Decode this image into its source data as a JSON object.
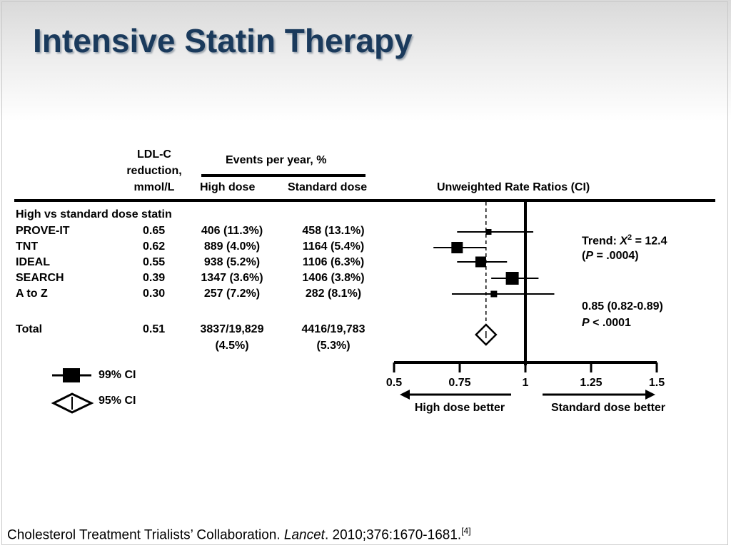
{
  "slide": {
    "title": "Intensive Statin Therapy"
  },
  "table": {
    "col_ldl": [
      "LDL-C",
      "reduction,",
      "mmol/L"
    ],
    "events_header": "Events per year, %",
    "col_high": "High dose",
    "col_standard": "Standard dose",
    "col_rr": "Unweighted Rate Ratios (CI)",
    "group_label": "High vs standard dose statin",
    "rows": [
      {
        "name": "PROVE-IT",
        "ldl": "0.65",
        "high": "406 (11.3%)",
        "standard": "458 (13.1%)"
      },
      {
        "name": "TNT",
        "ldl": "0.62",
        "high": "889 (4.0%)",
        "standard": "1164 (5.4%)"
      },
      {
        "name": "IDEAL",
        "ldl": "0.55",
        "high": "938 (5.2%)",
        "standard": "1106 (6.3%)"
      },
      {
        "name": "SEARCH",
        "ldl": "0.39",
        "high": "1347 (3.6%)",
        "standard": "1406 (3.8%)"
      },
      {
        "name": "A to Z",
        "ldl": "0.30",
        "high": "257 (7.2%)",
        "standard": "282 (8.1%)"
      }
    ],
    "total": {
      "name": "Total",
      "ldl": "0.51",
      "high": [
        "3837/19,829",
        "(4.5%)"
      ],
      "standard": [
        "4416/19,783",
        "(5.3%)"
      ]
    }
  },
  "legend": {
    "square_label": "99% CI",
    "diamond_label": "95% CI"
  },
  "annotations": {
    "trend_prefix": "Trend: ",
    "trend_symbol": "X",
    "trend_sup": "2",
    "trend_value": " = 12.4",
    "trend_p_open": "(",
    "trend_p_letter": "P",
    "trend_p_value": " = .0004)",
    "overall_estimate": "0.85 (0.82-0.89)",
    "overall_p_letter": "P",
    "overall_p_value": " < .0001"
  },
  "axis": {
    "ticks": [
      "0.5",
      "0.75",
      "1",
      "1.25",
      "1.5"
    ],
    "left_arrow_label": "High dose better",
    "right_arrow_label": "Standard dose better"
  },
  "chart_data": {
    "type": "forest",
    "xlim": [
      0.5,
      1.5
    ],
    "xticks": [
      0.5,
      0.75,
      1,
      1.25,
      1.5
    ],
    "reference_line": 1,
    "overall_dashed_line": 0.85,
    "studies": [
      {
        "name": "PROVE-IT",
        "estimate": 0.86,
        "ci_low": 0.74,
        "ci_high": 1.03
      },
      {
        "name": "TNT",
        "estimate": 0.74,
        "ci_low": 0.65,
        "ci_high": 0.85
      },
      {
        "name": "IDEAL",
        "estimate": 0.83,
        "ci_low": 0.74,
        "ci_high": 0.93
      },
      {
        "name": "SEARCH",
        "estimate": 0.95,
        "ci_low": 0.87,
        "ci_high": 1.05
      },
      {
        "name": "A to Z",
        "estimate": 0.88,
        "ci_low": 0.72,
        "ci_high": 1.11
      }
    ],
    "total": {
      "name": "Total",
      "estimate": 0.85,
      "ci_low": 0.82,
      "ci_high": 0.89
    }
  },
  "citation": {
    "authors": "Cholesterol Treatment Trialists’ Collaboration. ",
    "journal": "Lancet",
    "details": ". 2010;376:1670-1681.",
    "ref": "[4]"
  }
}
